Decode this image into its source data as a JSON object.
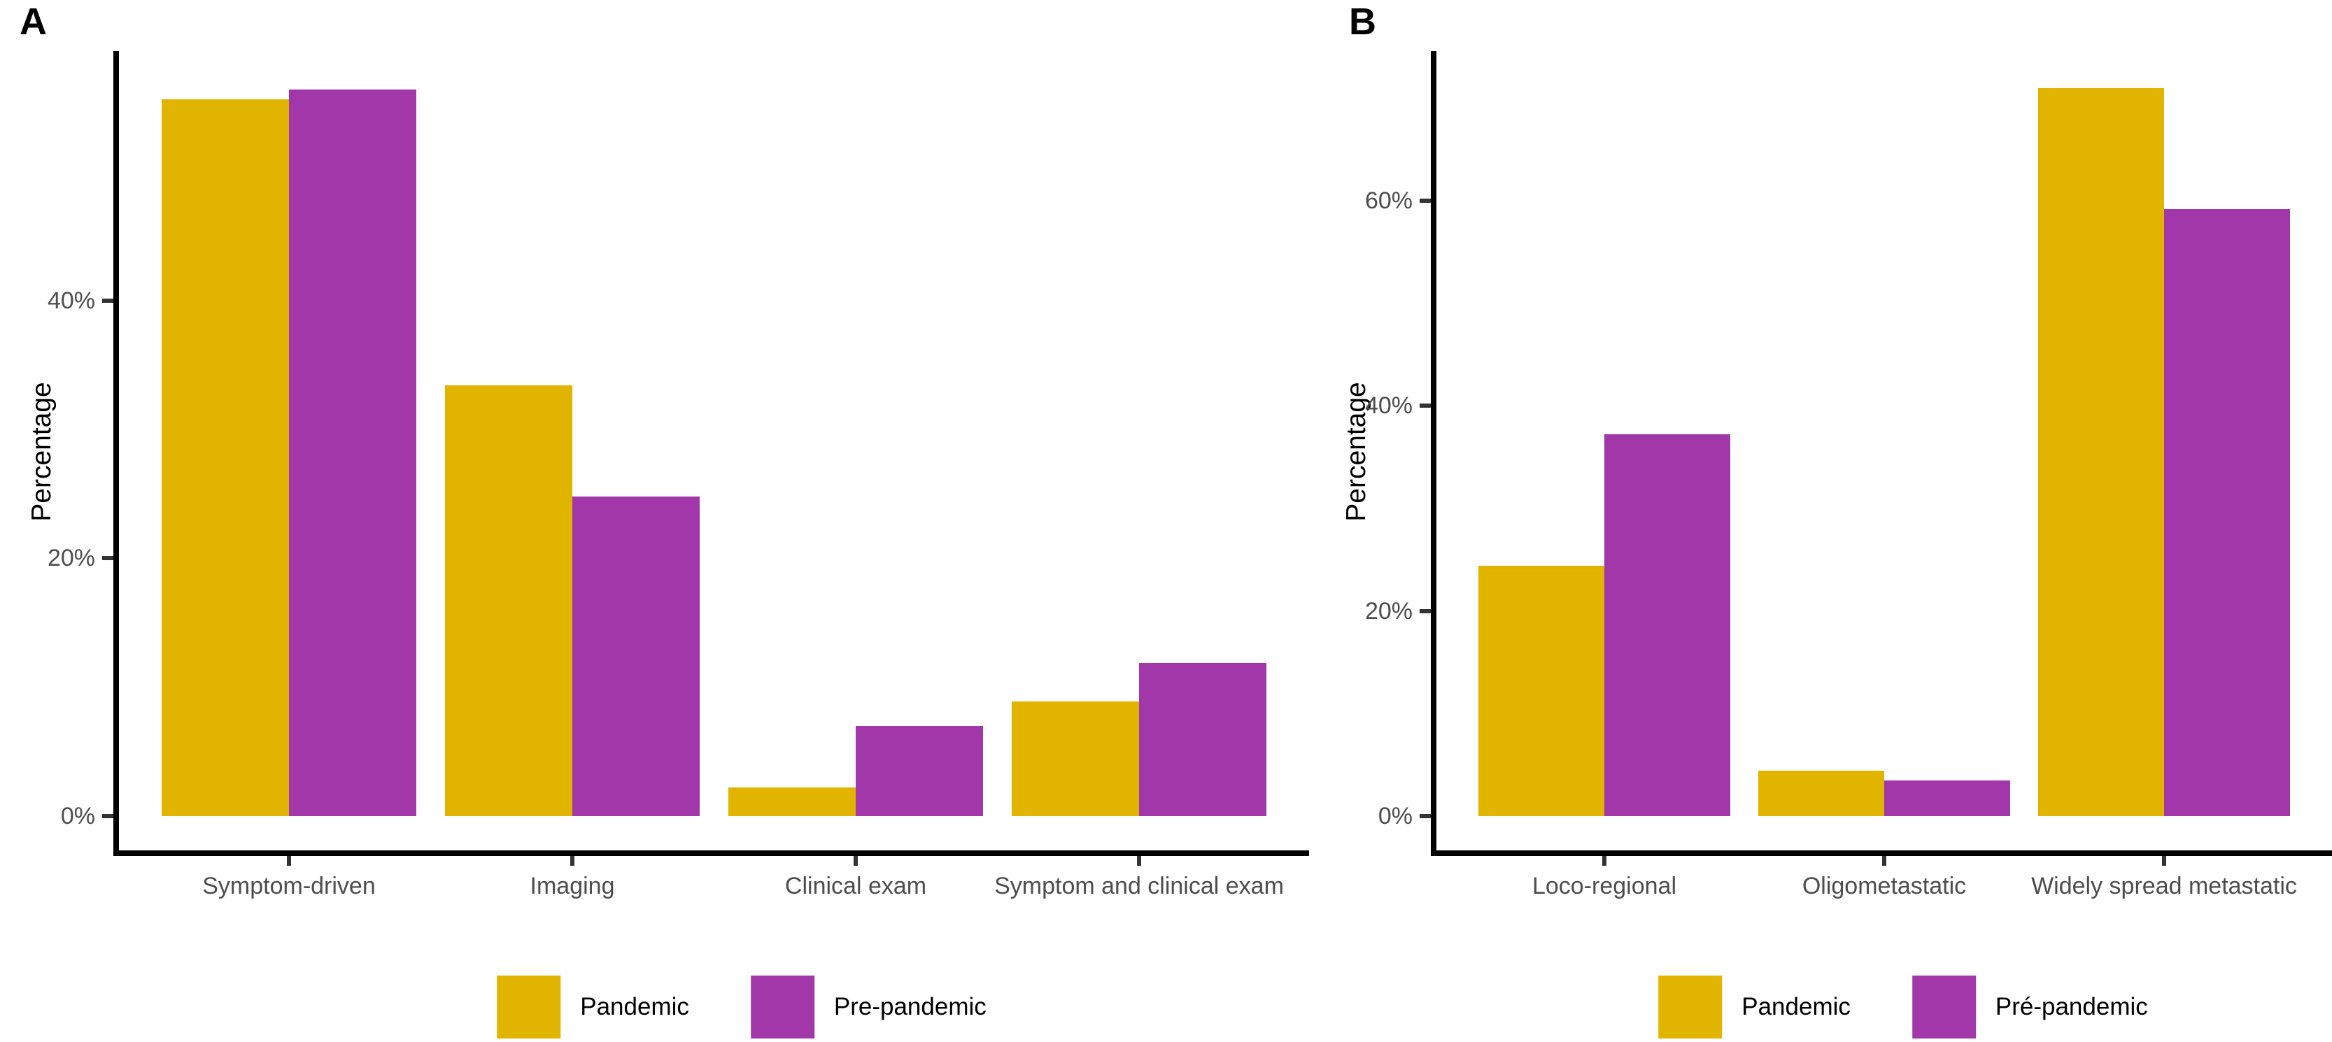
{
  "figure": {
    "background": "#ffffff",
    "description_colors": {
      "pandemic": "#E1B400",
      "pre_pandemic": "#A137A8",
      "axis_line": "#000000",
      "tick_mark": "#333333",
      "axis_text": "#4d4d4d",
      "legend_text": "#000000"
    }
  },
  "chart_data": [
    {
      "panel_label": "A",
      "type": "bar",
      "title": "",
      "xlabel": "",
      "ylabel": "Percentage",
      "categories": [
        "Symptom-driven",
        "Imaging",
        "Clinical exam",
        "Symptom and clinical exam"
      ],
      "series": [
        {
          "name": "Pandemic",
          "color": "#E1B400",
          "values": [
            55.6,
            33.4,
            2.2,
            8.9
          ]
        },
        {
          "name": "Pre-pandemic",
          "color": "#A137A8",
          "values": [
            56.4,
            24.8,
            7.0,
            11.9
          ]
        }
      ],
      "ytick_labels": [
        "0%",
        "20%",
        "40%"
      ],
      "yticks": [
        0,
        20,
        40
      ],
      "ylim": [
        0,
        59.5
      ],
      "grid": false,
      "legend_position": "bottom"
    },
    {
      "panel_label": "B",
      "type": "bar",
      "title": "",
      "xlabel": "",
      "ylabel": "Percentage",
      "categories": [
        "Loco-regional",
        "Oligometastatic",
        "Widely spread metastatic"
      ],
      "series": [
        {
          "name": "Pandemic",
          "color": "#E1B400",
          "values": [
            24.4,
            4.4,
            71.0
          ]
        },
        {
          "name": "Pré-pandemic",
          "color": "#A137A8",
          "values": [
            37.2,
            3.5,
            59.2
          ]
        }
      ],
      "ytick_labels": [
        "0%",
        "20%",
        "40%",
        "60%"
      ],
      "yticks": [
        0,
        20,
        40,
        60
      ],
      "ylim": [
        0,
        74.5
      ],
      "grid": false,
      "legend_position": "bottom"
    }
  ]
}
